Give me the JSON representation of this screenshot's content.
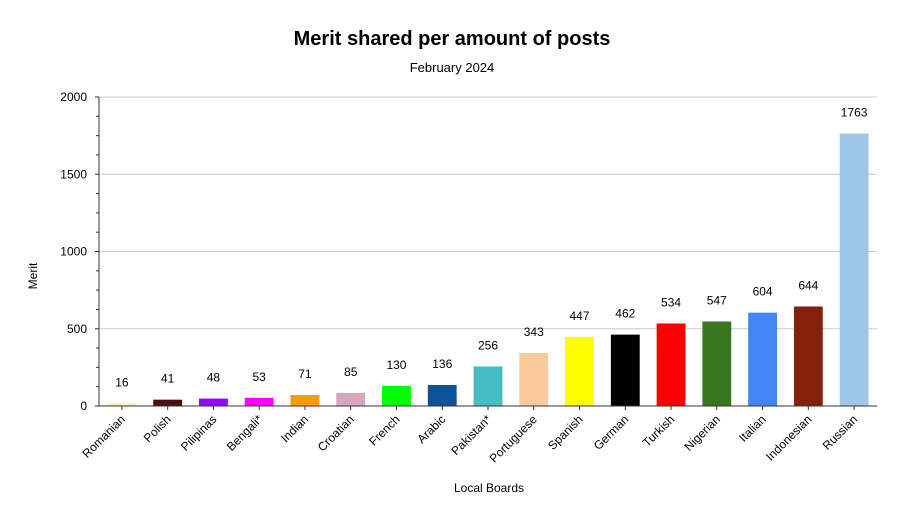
{
  "chart_data": {
    "type": "bar",
    "title": "Merit shared per amount of posts",
    "subtitle": "February 2024",
    "xlabel": "Local Boards",
    "ylabel": "Merit",
    "ylim": [
      0,
      2000
    ],
    "yticks": [
      "0",
      "500",
      "1000",
      "1500",
      "2000"
    ],
    "grid": true,
    "categories": [
      "Romanian",
      "Polish",
      "Pilipinas",
      "Bengali*",
      "Indian",
      "Croatian",
      "French",
      "Arabic",
      "Pakistan*",
      "Portuguese",
      "Spanish",
      "German",
      "Turkish",
      "Nigerian",
      "Italian",
      "Indonesian",
      "Russian"
    ],
    "values": [
      16,
      41,
      48,
      53,
      71,
      85,
      130,
      136,
      256,
      343,
      447,
      462,
      534,
      547,
      604,
      644,
      1763
    ],
    "data_labels": [
      "16",
      "41",
      "48",
      "53",
      "71",
      "85",
      "130",
      "136",
      "256",
      "343",
      "447",
      "462",
      "534",
      "547",
      "604",
      "644",
      "1763"
    ],
    "colors": [
      "#fce8b2",
      "#4a0e0e",
      "#9900ff",
      "#ff00ff",
      "#ff9900",
      "#d5a6bd",
      "#00ff00",
      "#0b5394",
      "#46bdc6",
      "#f9cb9c",
      "#ffff00",
      "#000000",
      "#ff0000",
      "#38761d",
      "#4285f4",
      "#85200c",
      "#9fc5e8"
    ]
  }
}
